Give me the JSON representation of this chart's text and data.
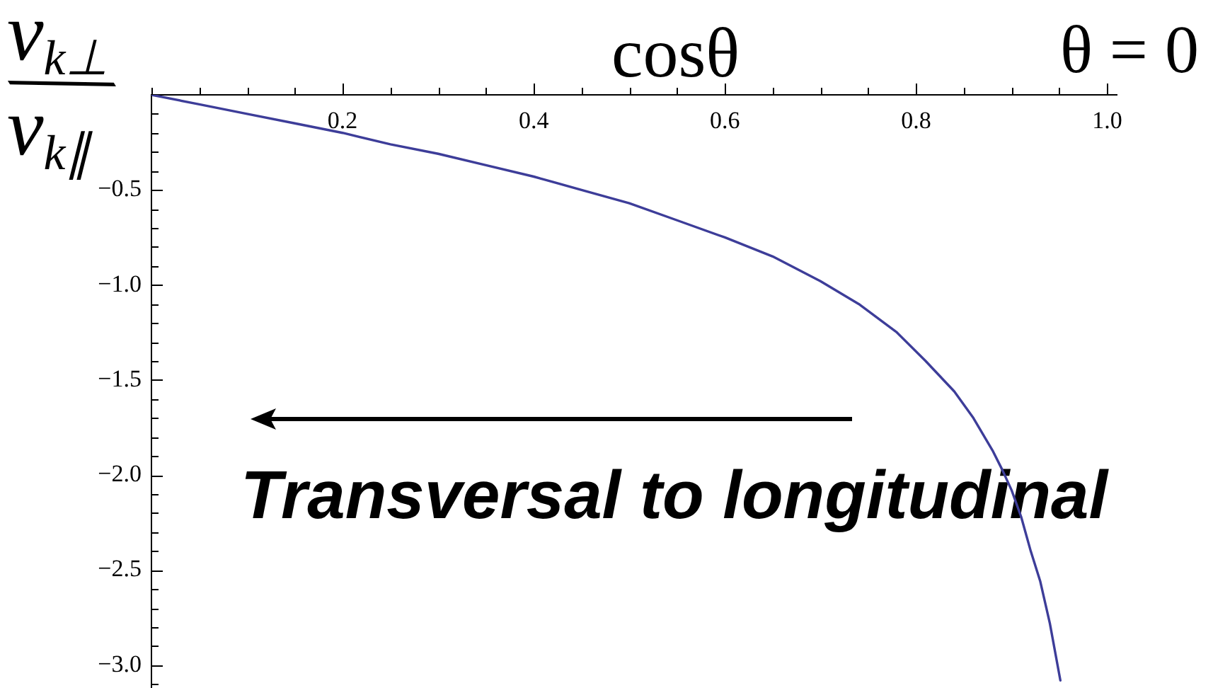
{
  "chart_data": {
    "type": "line",
    "xlabel": "cosθ",
    "ylabel": "v$_{k⊥}$/v$_{k∥}$",
    "annotations": [
      "Transversal to longitudinal",
      "θ = 0"
    ],
    "x": [
      0,
      0.05,
      0.1,
      0.15,
      0.2,
      0.25,
      0.3,
      0.35,
      0.4,
      0.45,
      0.5,
      0.55,
      0.6,
      0.65,
      0.7,
      0.74,
      0.78,
      0.81,
      0.84,
      0.86,
      0.88,
      0.89,
      0.9,
      0.91,
      0.92,
      0.93,
      0.94,
      0.951
    ],
    "values": [
      0,
      -0.05,
      -0.1,
      -0.15,
      -0.2,
      -0.26,
      -0.31,
      -0.37,
      -0.43,
      -0.5,
      -0.57,
      -0.66,
      -0.75,
      -0.85,
      -0.98,
      -1.1,
      -1.25,
      -1.4,
      -1.56,
      -1.7,
      -1.87,
      -1.97,
      -2.08,
      -2.22,
      -2.4,
      -2.56,
      -2.78,
      -3.08
    ],
    "color": "#3d3d99",
    "xlim": [
      0,
      1.01
    ],
    "ylim": [
      -3.12,
      0
    ],
    "xticks": [
      {
        "value": 0,
        "label": null
      },
      {
        "value": 0.05,
        "label": null
      },
      {
        "value": 0.1,
        "label": null
      },
      {
        "value": 0.15,
        "label": null
      },
      0.2,
      {
        "value": 0.25,
        "label": null
      },
      {
        "value": 0.3,
        "label": null
      },
      {
        "value": 0.35,
        "label": null
      },
      0.4,
      {
        "value": 0.45,
        "label": null
      },
      {
        "value": 0.5,
        "label": null
      },
      {
        "value": 0.55,
        "label": null
      },
      0.6,
      {
        "value": 0.65,
        "label": null
      },
      {
        "value": 0.7,
        "label": null
      },
      {
        "value": 0.75,
        "label": null
      },
      0.8,
      {
        "value": 0.85,
        "label": null
      },
      {
        "value": 0.9,
        "label": null
      },
      {
        "value": 0.95,
        "label": null
      },
      {
        "value": 1,
        "label": "1.0"
      }
    ],
    "yticks": [
      {
        "value": -0.1,
        "label": null
      },
      {
        "value": -0.2,
        "label": null
      },
      {
        "value": -0.3,
        "label": null
      },
      {
        "value": -0.4,
        "label": null
      },
      {
        "value": -0.5,
        "label": "−0.5"
      },
      {
        "value": -0.6,
        "label": null
      },
      {
        "value": -0.7,
        "label": null
      },
      {
        "value": -0.8,
        "label": null
      },
      {
        "value": -0.9,
        "label": null
      },
      {
        "value": -1,
        "label": "−1.0"
      },
      {
        "value": -1.1,
        "label": null
      },
      {
        "value": -1.2,
        "label": null
      },
      {
        "value": -1.3,
        "label": null
      },
      {
        "value": -1.4,
        "label": null
      },
      {
        "value": -1.5,
        "label": "−1.5"
      },
      {
        "value": -1.6,
        "label": null
      },
      {
        "value": -1.7,
        "label": null
      },
      {
        "value": -1.8,
        "label": null
      },
      {
        "value": -1.9,
        "label": null
      },
      {
        "value": -2,
        "label": "−2.0"
      },
      {
        "value": -2.1,
        "label": null
      },
      {
        "value": -2.2,
        "label": null
      },
      {
        "value": -2.3,
        "label": null
      },
      {
        "value": -2.4,
        "label": null
      },
      {
        "value": -2.5,
        "label": "−2.5"
      },
      {
        "value": -2.6,
        "label": null
      },
      {
        "value": -2.7,
        "label": null
      },
      {
        "value": -2.8,
        "label": null
      },
      {
        "value": -2.9,
        "label": null
      },
      {
        "value": -3,
        "label": "−3.0"
      },
      {
        "value": -3.1,
        "label": null
      }
    ]
  }
}
